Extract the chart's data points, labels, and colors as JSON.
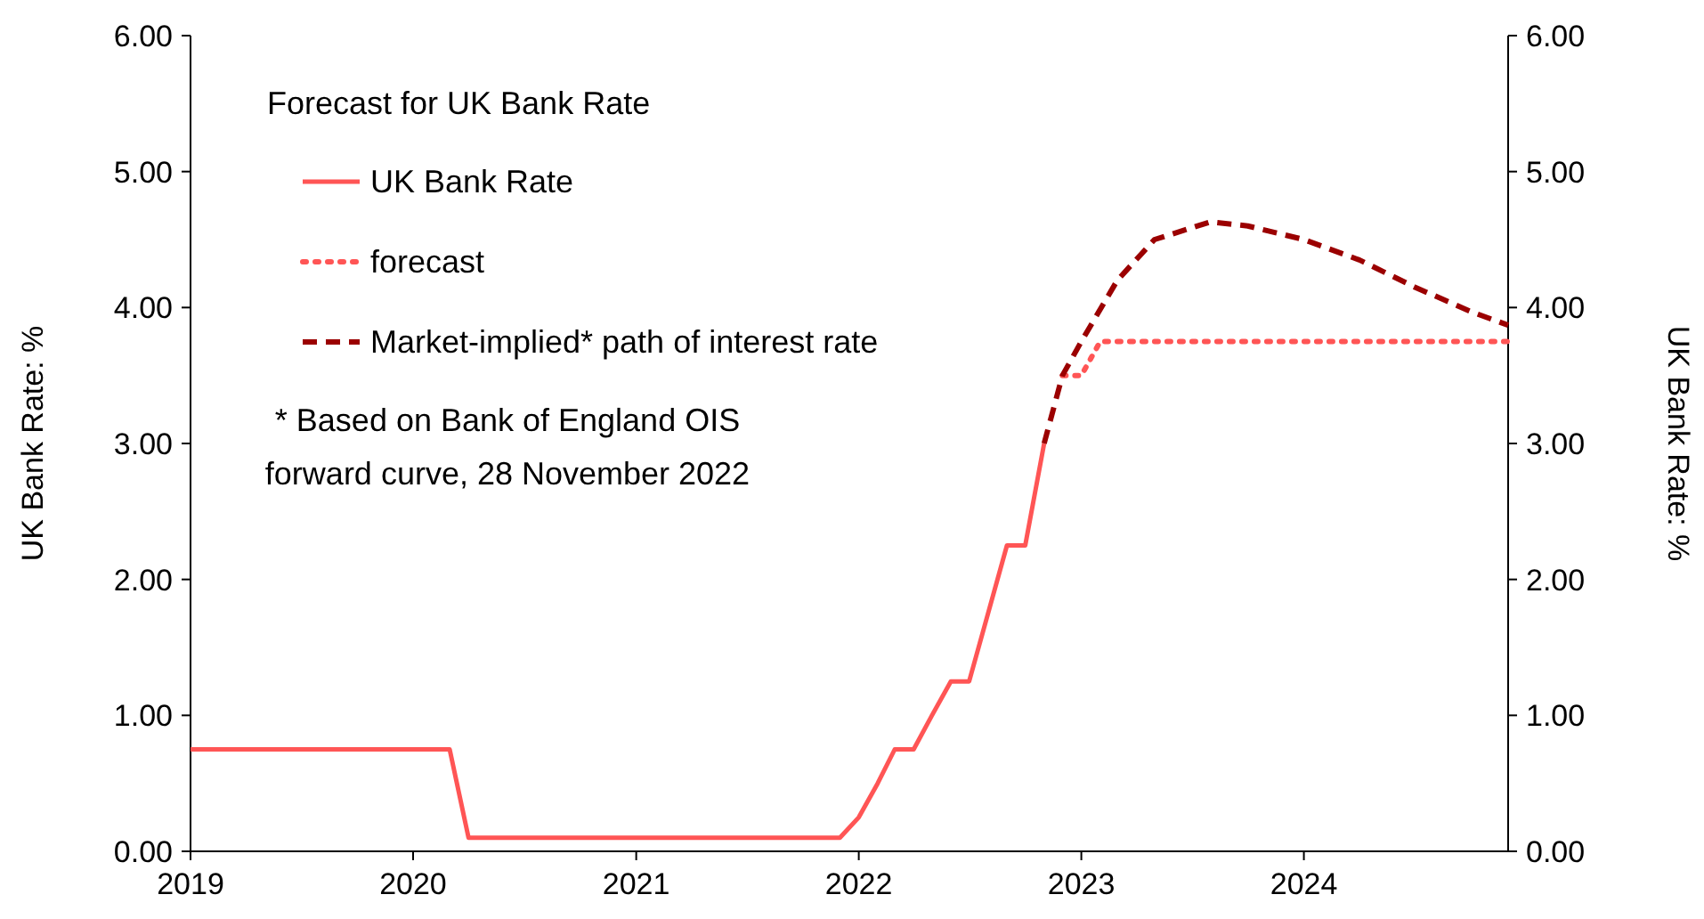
{
  "chart_data": {
    "type": "line",
    "legend_title": "Forecast for UK Bank Rate",
    "ylabel": "UK Bank Rate:  %",
    "y2label": "UK Bank Rate:  %",
    "annotations": [
      "* Based on Bank of England OIS\nforward curve, 28 November 2022"
    ],
    "xlim": [
      "2019-01",
      "2024-12"
    ],
    "xticks": [
      "2019",
      "2020",
      "2021",
      "2022",
      "2023",
      "2024"
    ],
    "ylim": [
      0,
      6
    ],
    "yticks": [
      {
        "value": 0,
        "label": "0.00"
      },
      {
        "value": 1,
        "label": "1.00"
      },
      {
        "value": 2,
        "label": "2.00"
      },
      {
        "value": 3,
        "label": "3.00"
      },
      {
        "value": 4,
        "label": "4.00"
      },
      {
        "value": 5,
        "label": "5.00"
      },
      {
        "value": 6,
        "label": "6.00"
      }
    ],
    "y2lim": [
      0,
      6
    ],
    "y2ticks": [
      {
        "value": 0,
        "label": "0.00"
      },
      {
        "value": 1,
        "label": "1.00"
      },
      {
        "value": 2,
        "label": "2.00"
      },
      {
        "value": 3,
        "label": "3.00"
      },
      {
        "value": 4,
        "label": "4.00"
      },
      {
        "value": 5,
        "label": "5.00"
      },
      {
        "value": 6,
        "label": "6.00"
      }
    ],
    "legend": "top left",
    "grid": false,
    "series": [
      {
        "name": "UK Bank Rate",
        "color": "#ff5555",
        "line_style": "solid",
        "x": [
          "2019-01",
          "2020-03",
          "2020-04",
          "2021-12",
          "2022-01",
          "2022-02",
          "2022-03",
          "2022-04",
          "2022-05",
          "2022-06",
          "2022-07",
          "2022-08",
          "2022-09",
          "2022-10",
          "2022-11"
        ],
        "values": [
          0.75,
          0.75,
          0.1,
          0.1,
          0.25,
          0.5,
          0.75,
          0.75,
          1.0,
          1.25,
          1.25,
          1.75,
          2.25,
          2.25,
          3.0
        ]
      },
      {
        "name": "forecast",
        "color": "#ff5555",
        "line_style": "dotted",
        "x": [
          "2022-12",
          "2023-01",
          "2023-02",
          "2023-06",
          "2024-01",
          "2024-06",
          "2024-12"
        ],
        "values": [
          3.5,
          3.5,
          3.75,
          3.75,
          3.75,
          3.75,
          3.75
        ]
      },
      {
        "name": "Market-implied* path of interest rate",
        "color": "#9b0000",
        "line_style": "dashed",
        "x": [
          "2022-11",
          "2022-12",
          "2023-01",
          "2023-03",
          "2023-05",
          "2023-08",
          "2023-10",
          "2024-01",
          "2024-04",
          "2024-07",
          "2024-10",
          "2024-12"
        ],
        "values": [
          3.0,
          3.5,
          3.75,
          4.2,
          4.5,
          4.63,
          4.6,
          4.5,
          4.35,
          4.15,
          3.97,
          3.87
        ]
      }
    ]
  }
}
